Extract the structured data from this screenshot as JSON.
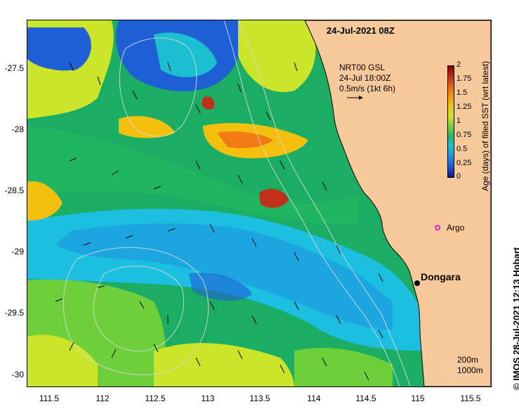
{
  "map": {
    "title": "24-Jul-2021 08Z",
    "product": {
      "line1": "NRT00 GSL",
      "line2": "24-Jul 18:00Z",
      "line3": "0.5m/s (1kt 6h)"
    },
    "places": [
      {
        "name": "Dongara",
        "lon": 114.93,
        "lat": -29.26,
        "marker": "black-dot"
      },
      {
        "name": "Argo",
        "lon": 115.13,
        "lat": -28.83,
        "marker": "magenta-star"
      }
    ],
    "contours": {
      "line1": "200m",
      "line2": "1000m"
    },
    "credit": "© IMOS 28-Jul-2021 12:13 Hobart",
    "land_color": "#f7c99b",
    "axes": {
      "x_ticks": [
        "111.5",
        "112",
        "112.5",
        "113",
        "113.5",
        "114",
        "114.5",
        "115",
        "115.5"
      ],
      "y_ticks": [
        "-27.5",
        "-28",
        "-28.5",
        "-29",
        "-29.5",
        "-30"
      ]
    }
  },
  "colorbar": {
    "title": "Age (days) of filled SST (wrt latest)",
    "ticks": [
      "2",
      "1.75",
      "1.5",
      "1.25",
      "1",
      "0.75",
      "0.5",
      "0.25",
      "0"
    ],
    "colors": [
      "#8b0000",
      "#c0311a",
      "#f47b14",
      "#f4c010",
      "#cbe52b",
      "#6fcf3a",
      "#25b56b",
      "#1bbfd0",
      "#1c9be0",
      "#1f5fd6",
      "#13148a"
    ]
  }
}
